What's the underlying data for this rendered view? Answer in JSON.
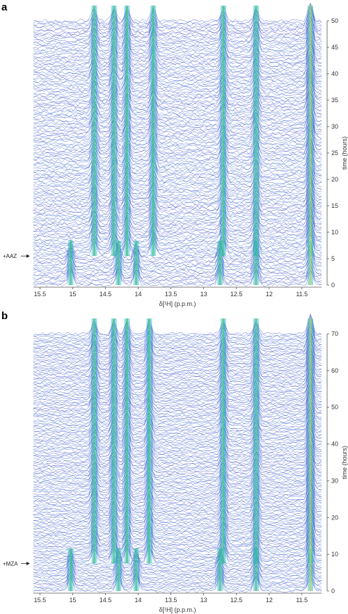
{
  "chart_data": [
    {
      "panel": "a",
      "type": "line",
      "xlabel": "δ[¹H] (p.p.m.)",
      "ylabel": "time (hours)",
      "xlim": [
        15.6,
        11.2
      ],
      "ylim": [
        0,
        50
      ],
      "x_ticks": [
        "15.5",
        "15",
        "14.5",
        "14",
        "13.5",
        "13",
        "12.5",
        "12",
        "11.5"
      ],
      "y_ticks": [
        "0",
        "5",
        "10",
        "15",
        "20",
        "25",
        "30",
        "35",
        "40",
        "45",
        "50"
      ],
      "annotation": {
        "text": "+AAZ",
        "time": 5.5
      },
      "peaks_after_addition": [
        14.67,
        14.37,
        14.17,
        13.77,
        12.7,
        12.2,
        11.37
      ],
      "peaks_before_addition": [
        15.03,
        14.3,
        14.03,
        12.75,
        12.2,
        11.37
      ]
    },
    {
      "panel": "b",
      "type": "line",
      "xlabel": "δ[¹H] (p.p.m.)",
      "ylabel": "time (hours)",
      "xlim": [
        15.6,
        11.2
      ],
      "ylim": [
        0,
        70
      ],
      "x_ticks": [
        "15.5",
        "15",
        "14.5",
        "14",
        "13.5",
        "13",
        "12.5",
        "12",
        "11.5"
      ],
      "y_ticks": [
        "0",
        "10",
        "20",
        "30",
        "40",
        "50",
        "60",
        "70"
      ],
      "annotation": {
        "text": "+MZA",
        "time": 7.5
      },
      "peaks_after_addition": [
        14.67,
        14.37,
        14.17,
        13.83,
        12.7,
        12.2,
        11.37
      ],
      "peaks_before_addition": [
        15.03,
        14.3,
        14.03,
        12.75,
        12.2,
        11.37
      ]
    }
  ]
}
